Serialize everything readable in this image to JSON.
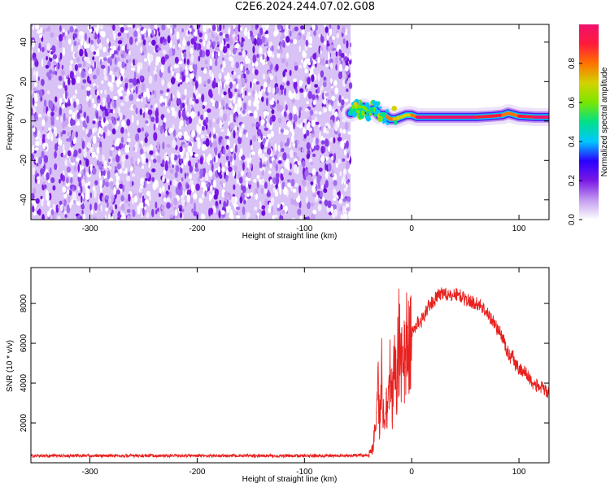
{
  "title": "C2E6.2024.244.07.02.G08",
  "chart_data": [
    {
      "type": "heatmap",
      "xlabel": "Height of straight line (km)",
      "ylabel": "Frequency (Hz)",
      "xlim": [
        -355,
        128
      ],
      "ylim": [
        -50,
        49
      ],
      "xticks": [
        -300,
        -200,
        -100,
        0,
        100
      ],
      "yticks": [
        -40,
        -20,
        0,
        20,
        40
      ],
      "colorbar": {
        "label": "Normalized spectral amplitude",
        "range": [
          0,
          1
        ],
        "ticks": [
          0.0,
          0.2,
          0.4,
          0.6,
          0.8
        ],
        "colors": [
          "#ffffff",
          "#c39bf0",
          "#7b19e6",
          "#2a00ff",
          "#00c8ff",
          "#00e08a",
          "#7ae600",
          "#d2d200",
          "#ff7300",
          "#ff1a3c",
          "#f0106e"
        ]
      },
      "noise_region_x": [
        -355,
        -57
      ],
      "noise_fill_fraction": 0.55,
      "signal_line": [
        {
          "x": -57,
          "freq": 4,
          "amp": 0.45
        },
        {
          "x": -50,
          "freq": 6,
          "amp": 0.5
        },
        {
          "x": -45,
          "freq": 7,
          "amp": 0.55
        },
        {
          "x": -40,
          "freq": 5,
          "amp": 0.55
        },
        {
          "x": -35,
          "freq": 6,
          "amp": 0.6
        },
        {
          "x": -30,
          "freq": 3,
          "amp": 0.65
        },
        {
          "x": -25,
          "freq": 3,
          "amp": 0.7
        },
        {
          "x": -20,
          "freq": 1,
          "amp": 0.8
        },
        {
          "x": -15,
          "freq": 1,
          "amp": 0.85
        },
        {
          "x": -10,
          "freq": 2,
          "amp": 0.75
        },
        {
          "x": -5,
          "freq": 3,
          "amp": 0.7
        },
        {
          "x": 0,
          "freq": 3,
          "amp": 0.65
        },
        {
          "x": 5,
          "freq": 2,
          "amp": 0.95
        },
        {
          "x": 20,
          "freq": 2,
          "amp": 1.0
        },
        {
          "x": 40,
          "freq": 2,
          "amp": 1.0
        },
        {
          "x": 60,
          "freq": 2,
          "amp": 0.95
        },
        {
          "x": 75,
          "freq": 2.5,
          "amp": 0.85
        },
        {
          "x": 85,
          "freq": 3,
          "amp": 0.9
        },
        {
          "x": 90,
          "freq": 4,
          "amp": 0.75
        },
        {
          "x": 100,
          "freq": 2.5,
          "amp": 0.9
        },
        {
          "x": 115,
          "freq": 2,
          "amp": 0.95
        },
        {
          "x": 128,
          "freq": 2,
          "amp": 0.95
        }
      ]
    },
    {
      "type": "line",
      "xlabel": "Height of straight line (km)",
      "ylabel": "SNR (10 * v/v)",
      "xlim": [
        -355,
        128
      ],
      "ylim": [
        0,
        9800
      ],
      "xticks": [
        -300,
        -200,
        -100,
        0,
        100
      ],
      "yticks": [
        2000,
        4000,
        6000,
        8000
      ],
      "color": "#e8211e",
      "series": [
        {
          "x": [
            -355,
            -300,
            -250,
            -200,
            -150,
            -100,
            -60,
            -40,
            -36,
            -33,
            -31,
            -30,
            -28,
            -26,
            -24,
            -22,
            -20,
            -18,
            -16,
            -14,
            -12,
            -10,
            -8,
            -6,
            -4,
            -2,
            0,
            5,
            10,
            15,
            20,
            25,
            30,
            35,
            40,
            45,
            50,
            55,
            60,
            65,
            70,
            75,
            80,
            85,
            88,
            90,
            92,
            94,
            96,
            100,
            105,
            110,
            115,
            120,
            125,
            128
          ],
          "y": [
            350,
            350,
            350,
            350,
            350,
            350,
            350,
            400,
            800,
            2500,
            4000,
            1500,
            4500,
            2000,
            3500,
            2800,
            4800,
            3000,
            5500,
            3800,
            6500,
            4500,
            5800,
            4800,
            6800,
            5500,
            6500,
            7000,
            7200,
            7800,
            8100,
            8400,
            8600,
            8300,
            8500,
            8400,
            8200,
            8100,
            8000,
            7900,
            7500,
            7200,
            6700,
            6300,
            5700,
            5500,
            5300,
            5600,
            5000,
            4700,
            4600,
            4200,
            3900,
            3800,
            3600,
            3500
          ]
        }
      ]
    }
  ]
}
